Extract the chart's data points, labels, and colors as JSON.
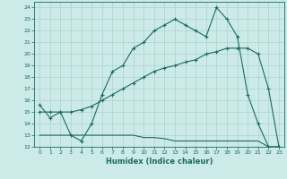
{
  "title": "",
  "xlabel": "Humidex (Indice chaleur)",
  "bg_color": "#cceae7",
  "grid_color": "#aad4d0",
  "line_color": "#1a6b60",
  "xlim": [
    -0.5,
    23.5
  ],
  "ylim": [
    12,
    24.5
  ],
  "xticks": [
    0,
    1,
    2,
    3,
    4,
    5,
    6,
    7,
    8,
    9,
    10,
    11,
    12,
    13,
    14,
    15,
    16,
    17,
    18,
    19,
    20,
    21,
    22,
    23
  ],
  "yticks": [
    12,
    13,
    14,
    15,
    16,
    17,
    18,
    19,
    20,
    21,
    22,
    23,
    24
  ],
  "line1_x": [
    0,
    1,
    2,
    3,
    4,
    5,
    6,
    7,
    8,
    9,
    10,
    11,
    12,
    13,
    14,
    15,
    16,
    17,
    18,
    19,
    20,
    21,
    22,
    23
  ],
  "line1_y": [
    15.6,
    14.5,
    15.0,
    13.0,
    12.5,
    14.0,
    16.5,
    18.5,
    19.0,
    20.5,
    21.0,
    22.0,
    22.5,
    23.0,
    22.5,
    22.0,
    21.5,
    24.0,
    23.0,
    21.5,
    16.5,
    14.0,
    12.0,
    12.0
  ],
  "line2_x": [
    0,
    1,
    2,
    3,
    4,
    5,
    6,
    7,
    8,
    9,
    10,
    11,
    12,
    13,
    14,
    15,
    16,
    17,
    18,
    19,
    20,
    21,
    22,
    23
  ],
  "line2_y": [
    15.0,
    15.0,
    15.0,
    15.0,
    15.2,
    15.5,
    16.0,
    16.5,
    17.0,
    17.5,
    18.0,
    18.5,
    18.8,
    19.0,
    19.3,
    19.5,
    20.0,
    20.2,
    20.5,
    20.5,
    20.5,
    20.0,
    17.0,
    12.0
  ],
  "line3_x": [
    0,
    1,
    2,
    3,
    4,
    5,
    6,
    7,
    8,
    9,
    10,
    11,
    12,
    13,
    14,
    15,
    16,
    17,
    18,
    19,
    20,
    21,
    22,
    23
  ],
  "line3_y": [
    13.0,
    13.0,
    13.0,
    13.0,
    13.0,
    13.0,
    13.0,
    13.0,
    13.0,
    13.0,
    12.8,
    12.8,
    12.7,
    12.5,
    12.5,
    12.5,
    12.5,
    12.5,
    12.5,
    12.5,
    12.5,
    12.5,
    12.0,
    12.0
  ]
}
